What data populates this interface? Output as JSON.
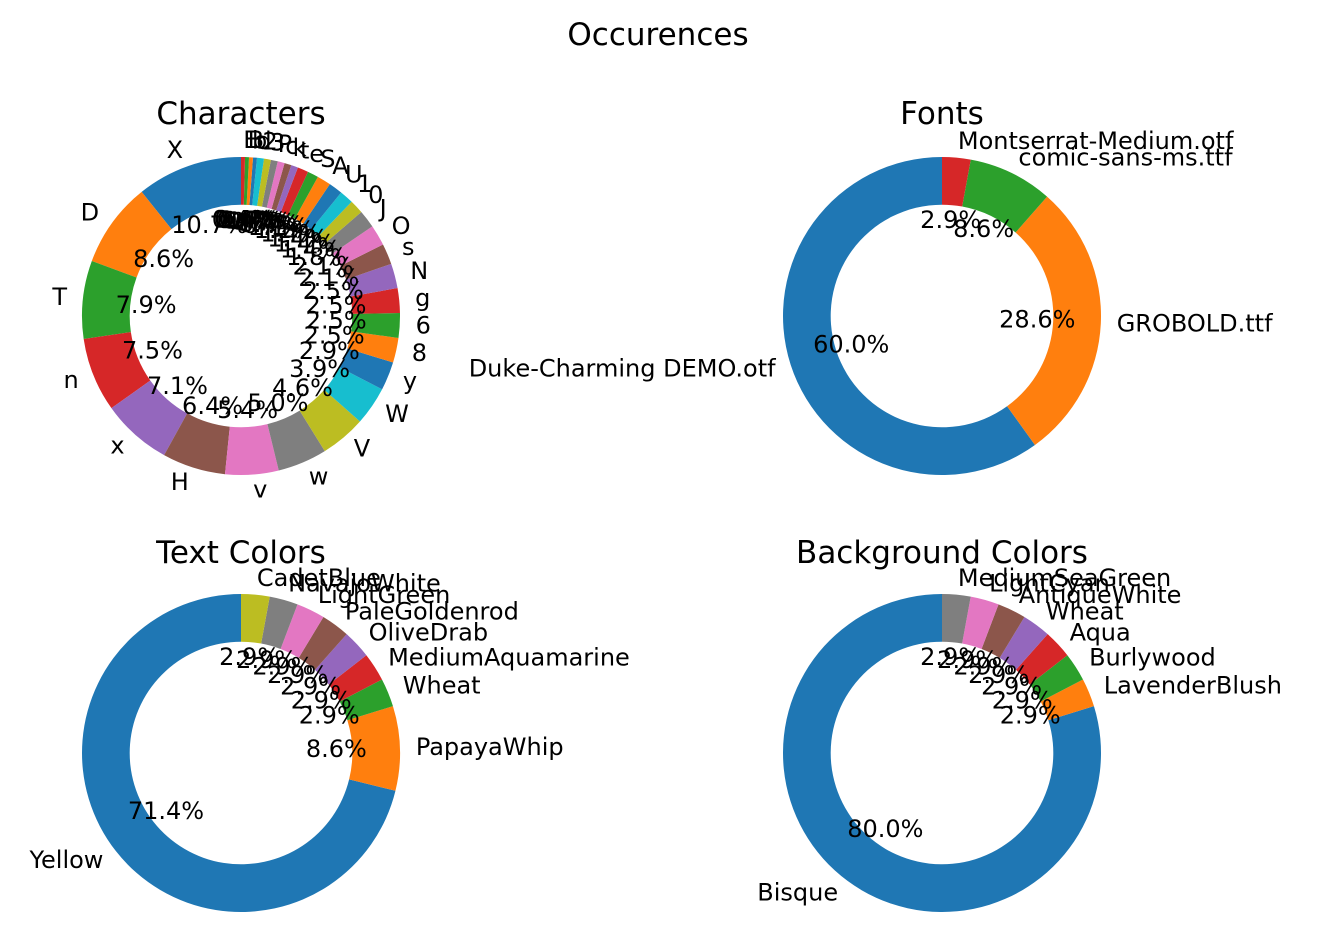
{
  "figure": {
    "suptitle": "Occurences"
  },
  "palette": [
    "#1f77b4",
    "#ff7f0e",
    "#2ca02c",
    "#d62728",
    "#9467bd",
    "#8c564b",
    "#e377c2",
    "#7f7f7f",
    "#bcbd22",
    "#17becf"
  ],
  "chart_data": [
    {
      "type": "pie",
      "style": "donut",
      "title": "Characters",
      "start_angle_deg": 90,
      "direction": "counterclockwise",
      "autopct": "%1.1f%%",
      "labels": [
        "X",
        "D",
        "T",
        "n",
        "x",
        "H",
        "v",
        "w",
        "V",
        "W",
        "y",
        "8",
        "6",
        "g",
        "N",
        "s",
        "O",
        "J",
        "0",
        "1",
        "U",
        "A",
        "S",
        "e",
        "t",
        "k",
        "c",
        "P",
        "3",
        "2",
        "d",
        "b",
        "B",
        "E"
      ],
      "values": [
        10.7,
        8.6,
        7.9,
        7.5,
        7.1,
        6.4,
        5.4,
        5.0,
        4.6,
        3.9,
        2.9,
        2.5,
        2.5,
        2.5,
        2.5,
        2.1,
        2.1,
        1.8,
        1.4,
        1.4,
        1.4,
        1.4,
        1.1,
        1.1,
        0.7,
        0.7,
        0.7,
        0.7,
        0.7,
        0.7,
        0.4,
        0.4,
        0.4,
        0.4
      ]
    },
    {
      "type": "pie",
      "style": "donut",
      "title": "Fonts",
      "start_angle_deg": 90,
      "direction": "counterclockwise",
      "autopct": "%1.1f%%",
      "labels": [
        "Duke-Charming DEMO.otf",
        "GROBOLD.ttf",
        "comic-sans-ms.ttf",
        "Montserrat-Medium.otf"
      ],
      "values": [
        60.0,
        28.6,
        8.6,
        2.9
      ]
    },
    {
      "type": "pie",
      "style": "donut",
      "title": "Text Colors",
      "start_angle_deg": 90,
      "direction": "counterclockwise",
      "autopct": "%1.1f%%",
      "labels": [
        "Yellow",
        "PapayaWhip",
        "Wheat",
        "MediumAquamarine",
        "OliveDrab",
        "PaleGoldenrod",
        "LightGreen",
        "NavajoWhite",
        "CadetBlue"
      ],
      "values": [
        71.4,
        8.6,
        2.9,
        2.9,
        2.9,
        2.9,
        2.9,
        2.9,
        2.9
      ]
    },
    {
      "type": "pie",
      "style": "donut",
      "title": "Background Colors",
      "start_angle_deg": 90,
      "direction": "counterclockwise",
      "autopct": "%1.1f%%",
      "labels": [
        "Bisque",
        "LavenderBlush",
        "Burlywood",
        "Aqua",
        "Wheat",
        "AntiqueWhite",
        "LightCyan",
        "MediumSeaGreen"
      ],
      "values": [
        80.0,
        2.9,
        2.9,
        2.9,
        2.9,
        2.9,
        2.9,
        2.9
      ]
    }
  ]
}
